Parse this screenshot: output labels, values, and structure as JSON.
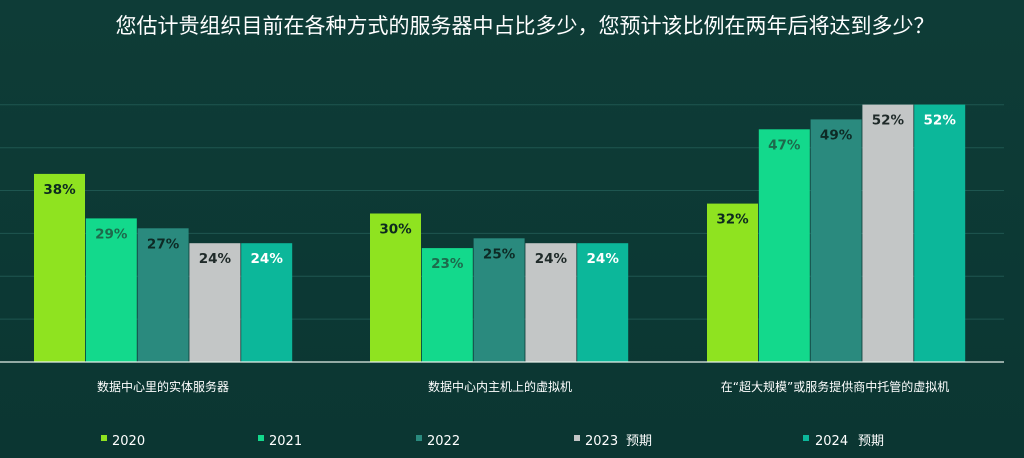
{
  "chart_data": {
    "type": "bar",
    "title": "您估计贵组织目前在各种方式的服务器中占比多少，您预计该比例在两年后将达到多少？",
    "categories": [
      "数据中心里的实体服务器",
      "数据中心内主机上的虚拟机",
      "在“超大规模”或服务提供商中托管的虚拟机"
    ],
    "ylim": [
      0,
      60
    ],
    "grid": true,
    "legend_position": "bottom",
    "series": [
      {
        "name": "2020",
        "suffix": "",
        "color": "#8fe320",
        "label_color": "#0d2a1f",
        "values": [
          38,
          30,
          32
        ]
      },
      {
        "name": "2021",
        "suffix": "",
        "color": "#13d98c",
        "label_color": "#1d6a4c",
        "values": [
          29,
          23,
          47
        ]
      },
      {
        "name": "2022",
        "suffix": "",
        "color": "#2a8a7e",
        "label_color": "#0d2a25",
        "values": [
          27,
          25,
          49
        ]
      },
      {
        "name": "2023",
        "suffix": "预期",
        "color": "#c3c6c6",
        "label_color": "#1f2a29",
        "values": [
          24,
          24,
          52
        ]
      },
      {
        "name": "2024",
        "suffix": "预期",
        "color": "#0cb79a",
        "label_color": "#ffffff",
        "values": [
          24,
          24,
          52
        ]
      }
    ],
    "value_labels": [
      [
        "38%",
        "30%",
        "32%"
      ],
      [
        "29%",
        "23%",
        "47%"
      ],
      [
        "27%",
        "25%",
        "49%"
      ],
      [
        "24%",
        "24%",
        "52%"
      ],
      [
        "24%",
        "24%",
        "52%"
      ]
    ]
  }
}
